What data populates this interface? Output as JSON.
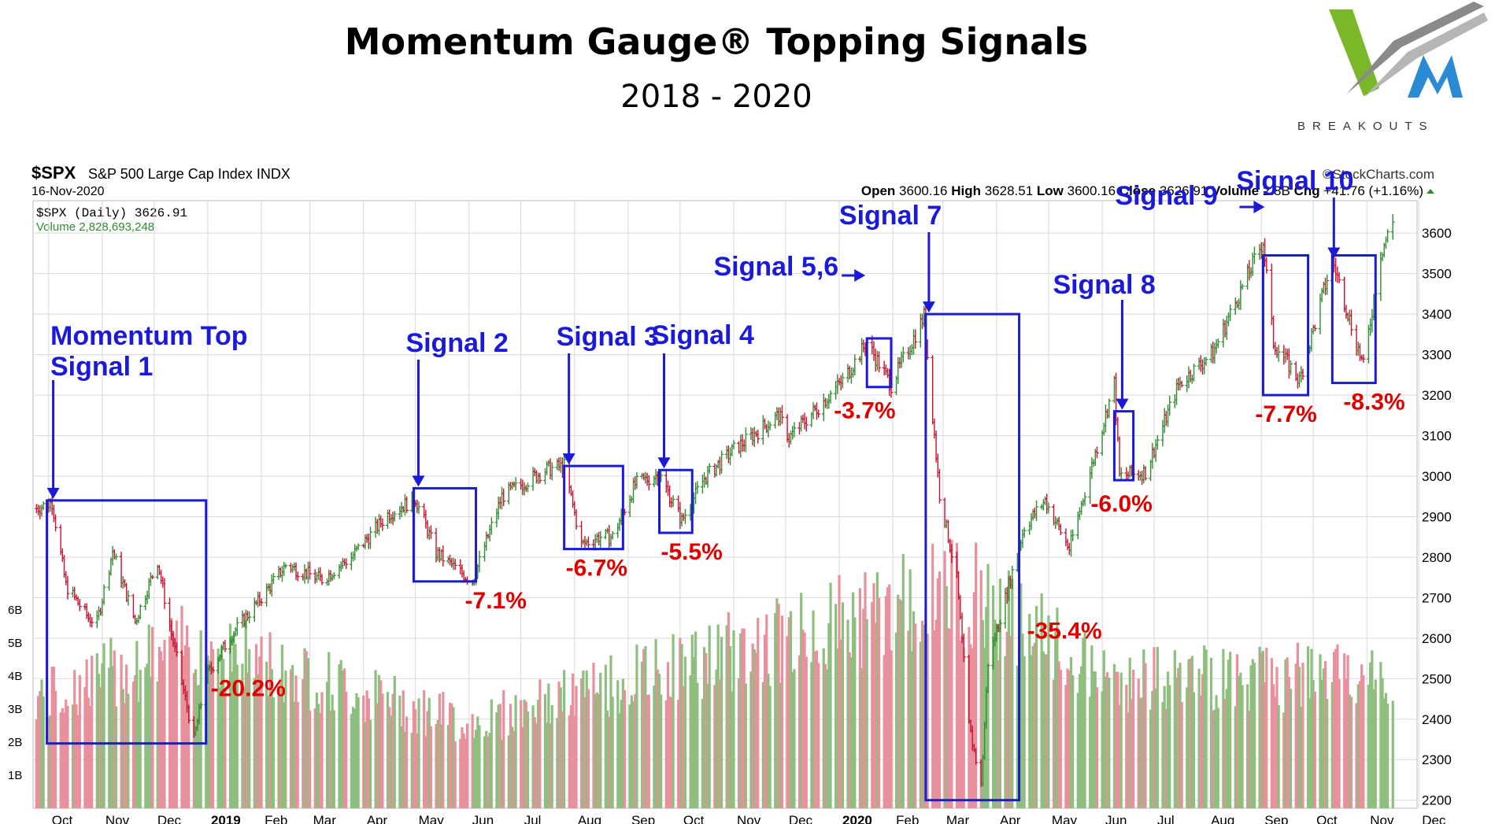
{
  "page": {
    "title": "Momentum Gauge® Topping Signals",
    "subtitle": "2018 - 2020",
    "logo_text": "BREAKOUTS",
    "colors": {
      "up": "#2e8b2e",
      "down": "#c8102e",
      "vol_up": "#8fbf7f",
      "vol_down": "#e8909c",
      "box": "#1a1ad8",
      "label": "#1a1ad8",
      "pct": "#e00000",
      "grid": "#d9d9d9"
    }
  },
  "header": {
    "symbol": "$SPX",
    "name": "S&P 500 Large Cap Index INDX",
    "date": "16-Nov-2020",
    "source": "©StockCharts.com",
    "ohlc": [
      {
        "k": "Open",
        "v": "3600.16"
      },
      {
        "k": "High",
        "v": "3628.51"
      },
      {
        "k": "Low",
        "v": "3600.16"
      },
      {
        "k": "Close",
        "v": "3626.91"
      },
      {
        "k": "Volume",
        "v": "2.8B"
      },
      {
        "k": "Chg",
        "v": "+41.76 (+1.16%)"
      }
    ],
    "legend_price": "$SPX (Daily) 3626.91",
    "legend_volume": "Volume 2,828,693,248"
  },
  "chart_data": {
    "type": "line",
    "title": "Momentum Gauge® Topping Signals",
    "subtitle": "2018 - 2020",
    "yaxis_right": [
      2200,
      2300,
      2400,
      2500,
      2600,
      2700,
      2800,
      2900,
      3000,
      3100,
      3200,
      3300,
      3400,
      3500,
      3600
    ],
    "yaxis_left_volume": [
      "1B",
      "2B",
      "3B",
      "4B",
      "5B",
      "6B"
    ],
    "ylim": [
      2180,
      3680
    ],
    "xlim": [
      "2018-09-22",
      "2020-11-30"
    ],
    "x_ticks": [
      {
        "d": "2018-10-01",
        "label": "Oct"
      },
      {
        "d": "2018-11-01",
        "label": "Nov"
      },
      {
        "d": "2018-12-01",
        "label": "Dec"
      },
      {
        "d": "2019-01-01",
        "label": "2019"
      },
      {
        "d": "2019-02-01",
        "label": "Feb"
      },
      {
        "d": "2019-03-01",
        "label": "Mar"
      },
      {
        "d": "2019-04-01",
        "label": "Apr"
      },
      {
        "d": "2019-05-01",
        "label": "May"
      },
      {
        "d": "2019-06-01",
        "label": "Jun"
      },
      {
        "d": "2019-07-01",
        "label": "Jul"
      },
      {
        "d": "2019-08-01",
        "label": "Aug"
      },
      {
        "d": "2019-09-01",
        "label": "Sep"
      },
      {
        "d": "2019-10-01",
        "label": "Oct"
      },
      {
        "d": "2019-11-01",
        "label": "Nov"
      },
      {
        "d": "2019-12-01",
        "label": "Dec"
      },
      {
        "d": "2020-01-01",
        "label": "2020"
      },
      {
        "d": "2020-02-01",
        "label": "Feb"
      },
      {
        "d": "2020-03-01",
        "label": "Mar"
      },
      {
        "d": "2020-04-01",
        "label": "Apr"
      },
      {
        "d": "2020-05-01",
        "label": "May"
      },
      {
        "d": "2020-06-01",
        "label": "Jun"
      },
      {
        "d": "2020-07-01",
        "label": "Jul"
      },
      {
        "d": "2020-08-01",
        "label": "Aug"
      },
      {
        "d": "2020-09-01",
        "label": "Sep"
      },
      {
        "d": "2020-10-01",
        "label": "Oct"
      },
      {
        "d": "2020-11-01",
        "label": "Nov"
      },
      {
        "d": "2020-12-01",
        "label": "Dec"
      }
    ],
    "series": [
      {
        "name": "$SPX (Daily)",
        "x": [
          "2018-09-24",
          "2018-10-03",
          "2018-10-11",
          "2018-10-24",
          "2018-10-29",
          "2018-11-07",
          "2018-11-20",
          "2018-12-03",
          "2018-12-10",
          "2018-12-24",
          "2018-12-31",
          "2019-01-15",
          "2019-02-01",
          "2019-02-15",
          "2019-03-08",
          "2019-03-25",
          "2019-04-15",
          "2019-05-01",
          "2019-05-13",
          "2019-06-03",
          "2019-06-20",
          "2019-07-15",
          "2019-07-26",
          "2019-08-05",
          "2019-08-15",
          "2019-08-23",
          "2019-09-05",
          "2019-09-19",
          "2019-10-02",
          "2019-10-15",
          "2019-11-01",
          "2019-11-27",
          "2019-12-03",
          "2020-01-03",
          "2020-01-17",
          "2020-01-31",
          "2020-02-19",
          "2020-02-28",
          "2020-03-09",
          "2020-03-16",
          "2020-03-23",
          "2020-03-27",
          "2020-04-17",
          "2020-04-29",
          "2020-05-13",
          "2020-06-08",
          "2020-06-11",
          "2020-06-26",
          "2020-07-15",
          "2020-08-04",
          "2020-09-02",
          "2020-09-08",
          "2020-09-23",
          "2020-10-12",
          "2020-10-30",
          "2020-11-09",
          "2020-11-16"
        ],
        "values": [
          2920,
          2935,
          2730,
          2650,
          2640,
          2815,
          2640,
          2790,
          2630,
          2350,
          2505,
          2610,
          2700,
          2780,
          2745,
          2800,
          2905,
          2945,
          2810,
          2740,
          2950,
          3015,
          3025,
          2830,
          2850,
          2850,
          2980,
          3005,
          2890,
          2995,
          3065,
          3150,
          3095,
          3235,
          3330,
          3225,
          3395,
          2955,
          2745,
          2385,
          2235,
          2540,
          2875,
          2940,
          2820,
          3230,
          3000,
          3010,
          3225,
          3305,
          3580,
          3330,
          3235,
          3535,
          3270,
          3550,
          3627
        ]
      },
      {
        "name": "Volume",
        "x": [
          "2018-10-01",
          "2018-12-24",
          "2019-06-01",
          "2020-03-16",
          "2020-06-01",
          "2020-11-16"
        ],
        "values": [
          3.3,
          4.9,
          2.5,
          6.5,
          3.8,
          3.9
        ]
      }
    ],
    "signals": [
      {
        "label": "Momentum Top",
        "label2": "Signal 1",
        "start": "2018-09-30",
        "end": "2018-12-31",
        "top": 2940,
        "bottom": 2340,
        "pct": "-20.2%"
      },
      {
        "label": "Signal 2",
        "start": "2019-04-30",
        "end": "2019-06-05",
        "top": 2970,
        "bottom": 2740,
        "pct": "-7.1%"
      },
      {
        "label": "Signal 3",
        "start": "2019-07-26",
        "end": "2019-08-29",
        "top": 3025,
        "bottom": 2820,
        "pct": "-6.7%"
      },
      {
        "label": "Signal 4",
        "start": "2019-09-19",
        "end": "2019-10-08",
        "top": 3015,
        "bottom": 2860,
        "pct": "-5.5%"
      },
      {
        "label": "Signal 5,6",
        "start": "2020-01-17",
        "end": "2020-01-31",
        "top": 3340,
        "bottom": 3220,
        "pct": "-3.7%"
      },
      {
        "label": "Signal 7",
        "start": "2020-02-20",
        "end": "2020-04-14",
        "top": 3400,
        "bottom": 2200,
        "pct": "-35.4%"
      },
      {
        "label": "Signal 8",
        "start": "2020-06-08",
        "end": "2020-06-19",
        "top": 3160,
        "bottom": 2990,
        "pct": "-6.0%"
      },
      {
        "label": "Signal 9",
        "start": "2020-09-02",
        "end": "2020-09-28",
        "top": 3545,
        "bottom": 3200,
        "pct": "-7.7%"
      },
      {
        "label": "Signal 10",
        "start": "2020-10-12",
        "end": "2020-11-06",
        "top": 3545,
        "bottom": 3230,
        "pct": "-8.3%"
      }
    ]
  }
}
